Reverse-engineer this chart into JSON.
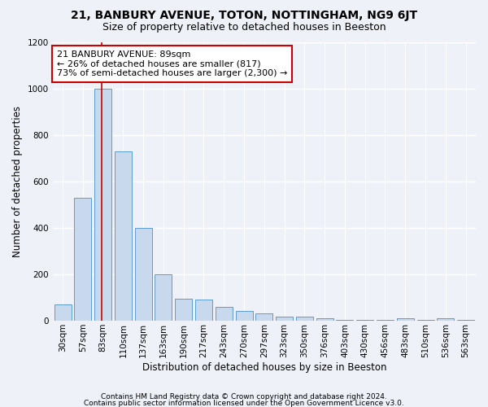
{
  "title1": "21, BANBURY AVENUE, TOTON, NOTTINGHAM, NG9 6JT",
  "title2": "Size of property relative to detached houses in Beeston",
  "xlabel": "Distribution of detached houses by size in Beeston",
  "ylabel": "Number of detached properties",
  "bar_labels": [
    "30sqm",
    "57sqm",
    "83sqm",
    "110sqm",
    "137sqm",
    "163sqm",
    "190sqm",
    "217sqm",
    "243sqm",
    "270sqm",
    "297sqm",
    "323sqm",
    "350sqm",
    "376sqm",
    "403sqm",
    "430sqm",
    "456sqm",
    "483sqm",
    "510sqm",
    "536sqm",
    "563sqm"
  ],
  "bar_values": [
    70,
    530,
    1000,
    730,
    400,
    200,
    95,
    90,
    60,
    43,
    33,
    18,
    18,
    10,
    5,
    3,
    3,
    10,
    3,
    10,
    3
  ],
  "bar_color": "#c8d9ee",
  "bar_edge_color": "#5b9bd5",
  "red_line_x": 2,
  "highlight_line_color": "#cc0000",
  "annotation_text": "21 BANBURY AVENUE: 89sqm\n← 26% of detached houses are smaller (817)\n73% of semi-detached houses are larger (2,300) →",
  "annotation_box_facecolor": "#ffffff",
  "annotation_box_edgecolor": "#cc0000",
  "ylim": [
    0,
    1200
  ],
  "yticks": [
    0,
    200,
    400,
    600,
    800,
    1000,
    1200
  ],
  "footer1": "Contains HM Land Registry data © Crown copyright and database right 2024.",
  "footer2": "Contains public sector information licensed under the Open Government Licence v3.0.",
  "bg_color": "#eef2f8",
  "grid_color": "#ffffff",
  "title1_fontsize": 10,
  "title2_fontsize": 9,
  "ylabel_fontsize": 8.5,
  "xlabel_fontsize": 8.5,
  "tick_fontsize": 7.5,
  "annotation_fontsize": 8,
  "footer_fontsize": 6.5
}
